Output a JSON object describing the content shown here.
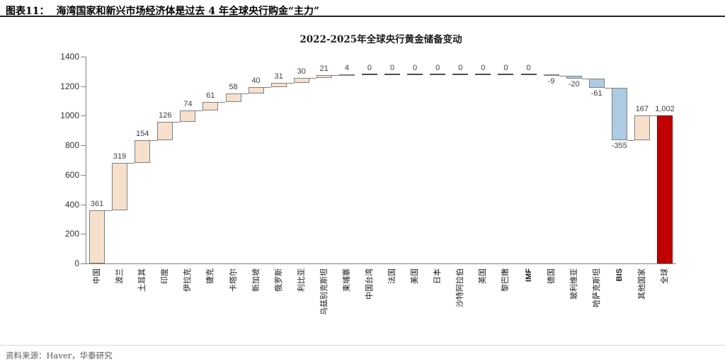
{
  "header": {
    "figure_label": "图表11：",
    "title": "海湾国家和新兴市场经济体是过去 4 年全球央行购金“主力”"
  },
  "chart_data": {
    "type": "bar",
    "subtype": "waterfall",
    "title": "2022-2025年全球央行黄金储备变动",
    "categories": [
      "中国",
      "波兰",
      "土耳其",
      "印度",
      "伊拉克",
      "捷克",
      "卡塔尔",
      "新加坡",
      "俄罗斯",
      "利比亚",
      "乌兹别克斯坦",
      "柬埔寨",
      "中国台湾",
      "法国",
      "美国",
      "日本",
      "沙特阿拉伯",
      "英国",
      "黎巴嫩",
      "IMF",
      "德国",
      "玻利维亚",
      "哈萨克斯坦",
      "BIS",
      "其他国家",
      "全球"
    ],
    "values": [
      361,
      319,
      154,
      126,
      74,
      61,
      58,
      40,
      31,
      30,
      21,
      4,
      0,
      0,
      0,
      0,
      0,
      0,
      0,
      0,
      -9,
      -20,
      -61,
      -355,
      167,
      1002
    ],
    "value_labels": [
      "361",
      "319",
      "154",
      "126",
      "74",
      "61",
      "58",
      "40",
      "31",
      "30",
      "21",
      "4",
      "0",
      "0",
      "0",
      "0",
      "0",
      "0",
      "0",
      "0",
      "-9",
      "-20",
      "-61",
      "-355",
      "167",
      "1,002"
    ],
    "total_index": 25,
    "ylim": [
      0,
      1400
    ],
    "ytick_labels": [
      "0",
      "200",
      "400",
      "600",
      "800",
      "1000",
      "1200",
      "1400"
    ],
    "ytick_step": 200,
    "grid": "off",
    "legend": "none",
    "colors": {
      "increase": "#F7E0CB",
      "decrease": "#AECBE2",
      "total": "#C00000",
      "total_border": "#8B0000",
      "bar_border": "#7F7F7F",
      "zero_dash": "#4D4D4D",
      "axis": "#808080"
    }
  },
  "footer": {
    "source": "资料来源：Haver，华泰研究"
  }
}
